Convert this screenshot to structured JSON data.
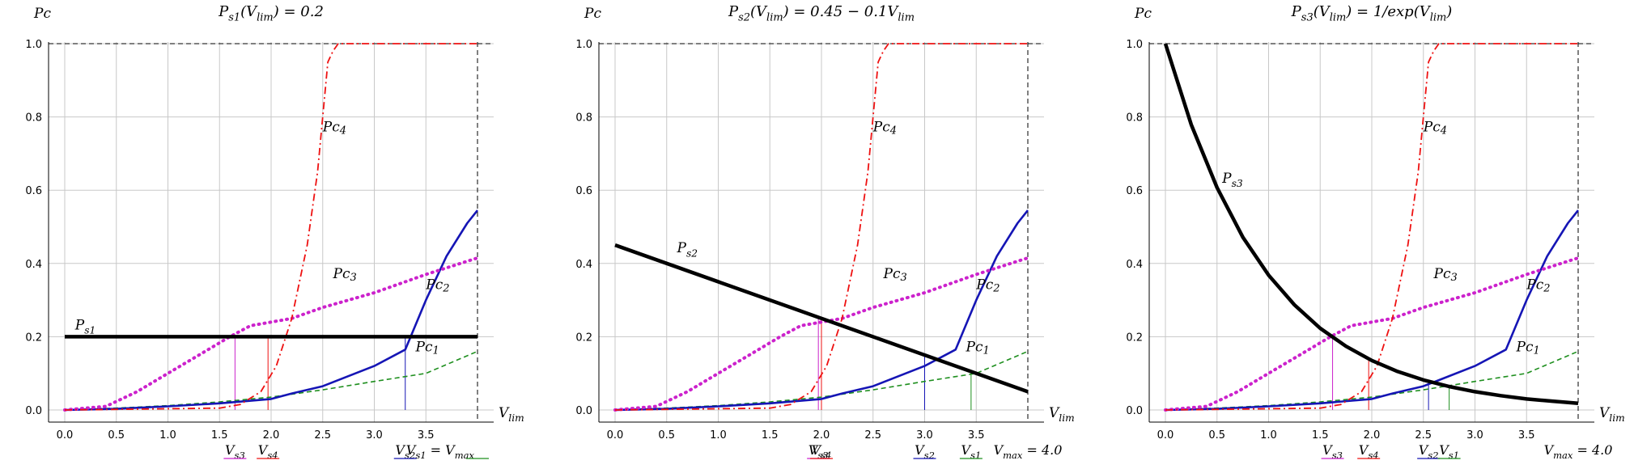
{
  "colors": {
    "pc1": "#1e8f1e",
    "pc2": "#1515b5",
    "pc3": "#cc22cc",
    "pc4": "#ee1111",
    "ps": "#000000",
    "grid": "#c8c8c8"
  },
  "chart_data": [
    {
      "type": "line",
      "title": "P_s1(V_lim) = 0.2",
      "ylabel": "Pc",
      "xlabel": "V_lim",
      "xlim": [
        0,
        4.0
      ],
      "ylim": [
        0,
        1.0
      ],
      "grid": true,
      "x_ticks": [
        "0.0",
        "0.5",
        "1.0",
        "1.5",
        "2.0",
        "2.5",
        "3.0",
        "3.5"
      ],
      "y_ticks": [
        "0.0",
        "0.2",
        "0.4",
        "0.6",
        "0.8",
        "1.0"
      ],
      "series": [
        {
          "name": "Pc1",
          "x": [
            0,
            0.5,
            1.0,
            1.5,
            2.0,
            2.5,
            3.0,
            3.5,
            4.0
          ],
          "y": [
            0,
            0.005,
            0.012,
            0.022,
            0.035,
            0.055,
            0.078,
            0.1,
            0.16
          ]
        },
        {
          "name": "Pc2",
          "x": [
            0,
            0.5,
            1.0,
            1.5,
            2.0,
            2.2,
            2.5,
            3.0,
            3.3,
            3.5,
            3.7,
            3.9,
            4.0
          ],
          "y": [
            0,
            0.003,
            0.01,
            0.018,
            0.03,
            0.045,
            0.065,
            0.12,
            0.165,
            0.3,
            0.42,
            0.51,
            0.545
          ]
        },
        {
          "name": "Pc3",
          "x": [
            0,
            0.4,
            0.7,
            1.0,
            1.3,
            1.6,
            1.8,
            2.2,
            2.5,
            3.0,
            3.5,
            4.0
          ],
          "y": [
            0,
            0.01,
            0.05,
            0.1,
            0.15,
            0.2,
            0.23,
            0.25,
            0.28,
            0.32,
            0.37,
            0.415
          ]
        },
        {
          "name": "Pc4",
          "x": [
            0,
            1.5,
            1.7,
            1.9,
            2.05,
            2.2,
            2.35,
            2.45,
            2.55,
            2.6,
            2.65,
            4.0
          ],
          "y": [
            0,
            0.005,
            0.015,
            0.05,
            0.12,
            0.25,
            0.45,
            0.65,
            0.95,
            0.98,
            1.0,
            1.0
          ]
        },
        {
          "name": "Ps1",
          "x": [
            0,
            4.0
          ],
          "y": [
            0.2,
            0.2
          ]
        }
      ],
      "labels": {
        "ps": "P_s1",
        "pc1": "Pc1",
        "pc2": "Pc2",
        "pc3": "Pc3",
        "pc4": "Pc4"
      },
      "v_markers": [
        {
          "label": "V_s3",
          "x": 1.65
        },
        {
          "label": "V_s4",
          "x": 1.97
        },
        {
          "label": "V_s2",
          "x": 3.3
        },
        {
          "label": "V_s1 = V_max",
          "x": 4.0
        }
      ]
    },
    {
      "type": "line",
      "title": "P_s2(V_lim) = 0.45 − 0.1V_lim",
      "ylabel": "Pc",
      "xlabel": "V_lim",
      "xlim": [
        0,
        4.0
      ],
      "ylim": [
        0,
        1.0
      ],
      "grid": true,
      "x_ticks": [
        "0.0",
        "0.5",
        "1.0",
        "1.5",
        "2.0",
        "2.5",
        "3.0",
        "3.5"
      ],
      "y_ticks": [
        "0.0",
        "0.2",
        "0.4",
        "0.6",
        "0.8",
        "1.0"
      ],
      "series": [
        {
          "name": "Pc1",
          "x": [
            0,
            0.5,
            1.0,
            1.5,
            2.0,
            2.5,
            3.0,
            3.5,
            4.0
          ],
          "y": [
            0,
            0.005,
            0.012,
            0.022,
            0.035,
            0.055,
            0.078,
            0.1,
            0.16
          ]
        },
        {
          "name": "Pc2",
          "x": [
            0,
            0.5,
            1.0,
            1.5,
            2.0,
            2.2,
            2.5,
            3.0,
            3.3,
            3.5,
            3.7,
            3.9,
            4.0
          ],
          "y": [
            0,
            0.003,
            0.01,
            0.018,
            0.03,
            0.045,
            0.065,
            0.12,
            0.165,
            0.3,
            0.42,
            0.51,
            0.545
          ]
        },
        {
          "name": "Pc3",
          "x": [
            0,
            0.4,
            0.7,
            1.0,
            1.3,
            1.6,
            1.8,
            2.2,
            2.5,
            3.0,
            3.5,
            4.0
          ],
          "y": [
            0,
            0.01,
            0.05,
            0.1,
            0.15,
            0.2,
            0.23,
            0.25,
            0.28,
            0.32,
            0.37,
            0.415
          ]
        },
        {
          "name": "Pc4",
          "x": [
            0,
            1.5,
            1.7,
            1.9,
            2.05,
            2.2,
            2.35,
            2.45,
            2.55,
            2.6,
            2.65,
            4.0
          ],
          "y": [
            0,
            0.005,
            0.015,
            0.05,
            0.12,
            0.25,
            0.45,
            0.65,
            0.95,
            0.98,
            1.0,
            1.0
          ]
        },
        {
          "name": "Ps2",
          "x": [
            0,
            4.0
          ],
          "y": [
            0.45,
            0.05
          ]
        }
      ],
      "labels": {
        "ps": "P_s2",
        "pc1": "Pc1",
        "pc2": "Pc2",
        "pc3": "Pc3",
        "pc4": "Pc4"
      },
      "v_markers": [
        {
          "label": "V_s3",
          "x": 1.97
        },
        {
          "label": "V_s4",
          "x": 2.0
        },
        {
          "label": "V_s2",
          "x": 3.0
        },
        {
          "label": "V_s1",
          "x": 3.45
        },
        {
          "label": "V_max = 4.0",
          "x": 4.0
        }
      ]
    },
    {
      "type": "line",
      "title": "P_s3(V_lim) = 1/exp(V_lim)",
      "ylabel": "Pc",
      "xlabel": "V_lim",
      "xlim": [
        0,
        4.0
      ],
      "ylim": [
        0,
        1.0
      ],
      "grid": true,
      "x_ticks": [
        "0.0",
        "0.5",
        "1.0",
        "1.5",
        "2.0",
        "2.5",
        "3.0",
        "3.5"
      ],
      "y_ticks": [
        "0.0",
        "0.2",
        "0.4",
        "0.6",
        "0.8",
        "1.0"
      ],
      "series": [
        {
          "name": "Pc1",
          "x": [
            0,
            0.5,
            1.0,
            1.5,
            2.0,
            2.5,
            3.0,
            3.5,
            4.0
          ],
          "y": [
            0,
            0.005,
            0.012,
            0.022,
            0.035,
            0.055,
            0.078,
            0.1,
            0.16
          ]
        },
        {
          "name": "Pc2",
          "x": [
            0,
            0.5,
            1.0,
            1.5,
            2.0,
            2.2,
            2.5,
            3.0,
            3.3,
            3.5,
            3.7,
            3.9,
            4.0
          ],
          "y": [
            0,
            0.003,
            0.01,
            0.018,
            0.03,
            0.045,
            0.065,
            0.12,
            0.165,
            0.3,
            0.42,
            0.51,
            0.545
          ]
        },
        {
          "name": "Pc3",
          "x": [
            0,
            0.4,
            0.7,
            1.0,
            1.3,
            1.6,
            1.8,
            2.2,
            2.5,
            3.0,
            3.5,
            4.0
          ],
          "y": [
            0,
            0.01,
            0.05,
            0.1,
            0.15,
            0.2,
            0.23,
            0.25,
            0.28,
            0.32,
            0.37,
            0.415
          ]
        },
        {
          "name": "Pc4",
          "x": [
            0,
            1.5,
            1.7,
            1.9,
            2.05,
            2.2,
            2.35,
            2.45,
            2.55,
            2.6,
            2.65,
            4.0
          ],
          "y": [
            0,
            0.005,
            0.015,
            0.05,
            0.12,
            0.25,
            0.45,
            0.65,
            0.95,
            0.98,
            1.0,
            1.0
          ]
        },
        {
          "name": "Ps3",
          "x": [
            0,
            0.25,
            0.5,
            0.75,
            1.0,
            1.25,
            1.5,
            1.75,
            2.0,
            2.25,
            2.5,
            2.75,
            3.0,
            3.25,
            3.5,
            3.75,
            4.0
          ],
          "y": [
            1.0,
            0.779,
            0.607,
            0.472,
            0.368,
            0.287,
            0.223,
            0.174,
            0.135,
            0.105,
            0.082,
            0.064,
            0.05,
            0.039,
            0.03,
            0.024,
            0.018
          ]
        }
      ],
      "labels": {
        "ps": "P_s3",
        "pc1": "Pc1",
        "pc2": "Pc2",
        "pc3": "Pc3",
        "pc4": "Pc4"
      },
      "v_markers": [
        {
          "label": "V_s3",
          "x": 1.62
        },
        {
          "label": "V_s4",
          "x": 1.97
        },
        {
          "label": "V_s2",
          "x": 2.55
        },
        {
          "label": "V_s1",
          "x": 2.75
        },
        {
          "label": "V_max = 4.0",
          "x": 4.0
        }
      ]
    }
  ]
}
